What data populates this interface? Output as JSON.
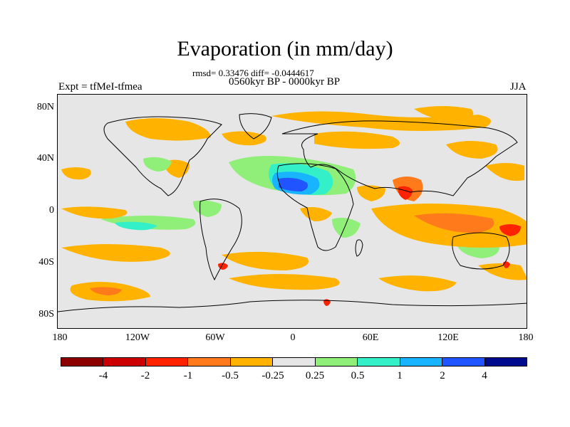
{
  "header": {
    "title": "Evaporation (in mm/day)",
    "stats": "rmsd= 0.33476 diff= -0.0444617",
    "period": "0560kyr BP - 0000kyr BP",
    "experiment": "Expt = tfMeI-tfmea",
    "season": "JJA"
  },
  "map": {
    "projection": "cylindrical-equidistant",
    "lon_range": [
      -180,
      180
    ],
    "lat_range": [
      -90,
      90
    ],
    "background_color": "#e6e6e6",
    "y_tick_labels": [
      "80N",
      "40N",
      "0",
      "40S",
      "80S"
    ],
    "y_tick_values": [
      80,
      40,
      0,
      -40,
      -80
    ],
    "x_tick_labels": [
      "180",
      "120W",
      "60W",
      "0",
      "60E",
      "120E",
      "180"
    ],
    "x_tick_values": [
      -180,
      -120,
      -60,
      0,
      60,
      120,
      180
    ]
  },
  "colorbar": {
    "colors": [
      "#8c0000",
      "#cc0000",
      "#ff2200",
      "#ff7a1a",
      "#ffb300",
      "#e6e6e6",
      "#8fef78",
      "#33f0c8",
      "#19b4ff",
      "#1f54ff",
      "#000a8c"
    ],
    "labels": [
      "-4",
      "-2",
      "-1",
      "-0.5",
      "-0.25",
      "0.25",
      "0.5",
      "1",
      "2",
      "4"
    ]
  }
}
